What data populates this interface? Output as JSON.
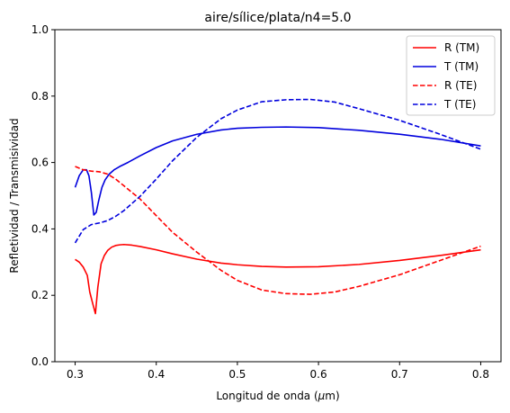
{
  "chart_data": {
    "type": "line",
    "title": "aire/sílice/plata/n4=5.0",
    "xlabel_prefix": "Longitud de onda (",
    "xlabel_mu": "μ",
    "xlabel_suffix": "m)",
    "ylabel": "Refletividad / Transmisividad",
    "xlim": [
      0.275,
      0.825
    ],
    "ylim": [
      0.0,
      1.0
    ],
    "xticks": [
      0.3,
      0.4,
      0.5,
      0.6,
      0.7,
      0.8
    ],
    "xtick_labels": [
      "0.3",
      "0.4",
      "0.5",
      "0.6",
      "0.7",
      "0.8"
    ],
    "yticks": [
      0.0,
      0.2,
      0.4,
      0.6,
      0.8,
      1.0
    ],
    "ytick_labels": [
      "0.0",
      "0.2",
      "0.4",
      "0.6",
      "0.8",
      "1.0"
    ],
    "legend_position": "top-right",
    "series": [
      {
        "name": "R (TM)",
        "color": "#ff0000",
        "dash": "solid",
        "x": [
          0.3,
          0.305,
          0.31,
          0.315,
          0.318,
          0.322,
          0.325,
          0.328,
          0.332,
          0.336,
          0.34,
          0.345,
          0.35,
          0.355,
          0.36,
          0.37,
          0.38,
          0.4,
          0.42,
          0.45,
          0.48,
          0.5,
          0.53,
          0.56,
          0.6,
          0.65,
          0.7,
          0.75,
          0.8
        ],
        "y": [
          0.308,
          0.3,
          0.285,
          0.26,
          0.21,
          0.172,
          0.145,
          0.225,
          0.295,
          0.32,
          0.335,
          0.345,
          0.35,
          0.352,
          0.353,
          0.351,
          0.347,
          0.337,
          0.325,
          0.309,
          0.297,
          0.292,
          0.287,
          0.285,
          0.286,
          0.293,
          0.305,
          0.32,
          0.337
        ]
      },
      {
        "name": "T (TM)",
        "color": "#0000dd",
        "dash": "solid",
        "x": [
          0.3,
          0.305,
          0.31,
          0.314,
          0.317,
          0.32,
          0.323,
          0.326,
          0.329,
          0.333,
          0.337,
          0.342,
          0.348,
          0.355,
          0.365,
          0.38,
          0.4,
          0.42,
          0.45,
          0.48,
          0.5,
          0.53,
          0.56,
          0.6,
          0.65,
          0.7,
          0.75,
          0.8
        ],
        "y": [
          0.525,
          0.56,
          0.578,
          0.578,
          0.56,
          0.51,
          0.442,
          0.45,
          0.485,
          0.525,
          0.548,
          0.565,
          0.578,
          0.588,
          0.6,
          0.62,
          0.645,
          0.665,
          0.685,
          0.698,
          0.703,
          0.706,
          0.707,
          0.705,
          0.697,
          0.685,
          0.67,
          0.65
        ]
      },
      {
        "name": "R (TE)",
        "color": "#ff0000",
        "dash": "dashed",
        "x": [
          0.3,
          0.31,
          0.32,
          0.33,
          0.34,
          0.35,
          0.36,
          0.38,
          0.4,
          0.42,
          0.45,
          0.48,
          0.5,
          0.53,
          0.56,
          0.59,
          0.62,
          0.65,
          0.7,
          0.75,
          0.8
        ],
        "y": [
          0.588,
          0.578,
          0.574,
          0.572,
          0.565,
          0.55,
          0.53,
          0.49,
          0.44,
          0.39,
          0.33,
          0.275,
          0.245,
          0.216,
          0.205,
          0.203,
          0.21,
          0.227,
          0.262,
          0.305,
          0.348
        ]
      },
      {
        "name": "T (TE)",
        "color": "#0000dd",
        "dash": "dashed",
        "x": [
          0.3,
          0.31,
          0.32,
          0.33,
          0.34,
          0.35,
          0.36,
          0.38,
          0.4,
          0.42,
          0.45,
          0.48,
          0.5,
          0.53,
          0.56,
          0.59,
          0.62,
          0.65,
          0.7,
          0.75,
          0.8
        ],
        "y": [
          0.358,
          0.398,
          0.413,
          0.418,
          0.425,
          0.438,
          0.455,
          0.498,
          0.55,
          0.605,
          0.676,
          0.732,
          0.758,
          0.783,
          0.789,
          0.79,
          0.782,
          0.762,
          0.727,
          0.685,
          0.64
        ]
      }
    ]
  }
}
